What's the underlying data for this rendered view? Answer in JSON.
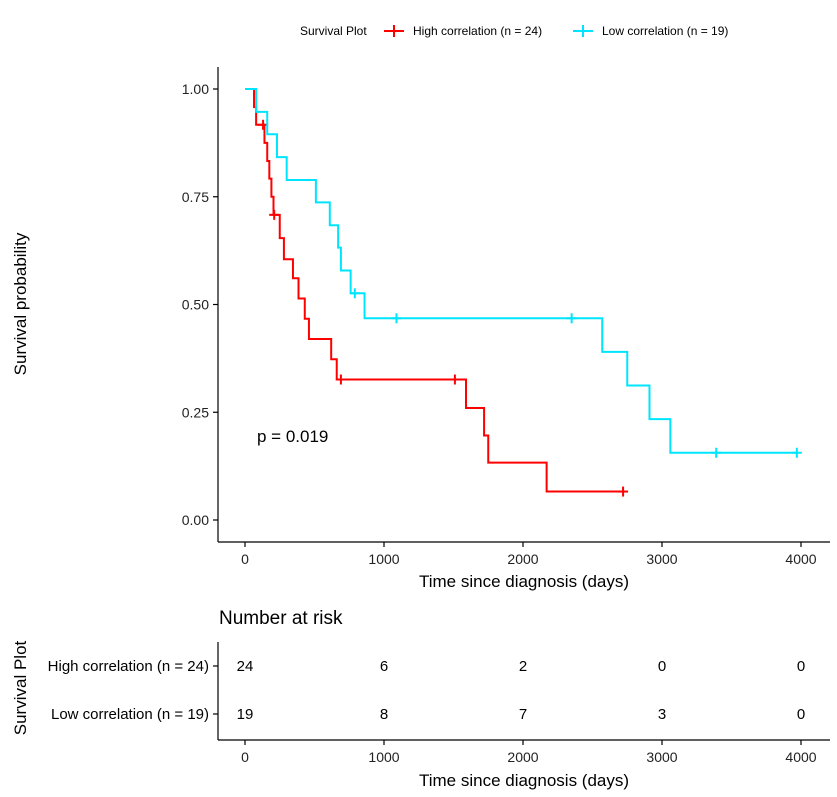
{
  "chart_data": {
    "type": "line",
    "subtype": "kaplan-meier-step",
    "legend": {
      "title": "Survival Plot",
      "placement": "top",
      "entries": [
        "High correlation (n = 24)",
        "Low correlation (n = 19)"
      ]
    },
    "xlabel": "Time since diagnosis (days)",
    "ylabel": "Survival probability",
    "xlim": [
      0,
      4000
    ],
    "ylim": [
      0,
      1
    ],
    "x_ticks": [
      "0",
      "1000",
      "2000",
      "3000",
      "4000"
    ],
    "y_ticks": [
      "0.00",
      "0.25",
      "0.50",
      "0.75",
      "1.00"
    ],
    "annotation": "p = 0.019",
    "series": [
      {
        "name": "High correlation (n = 24)",
        "color": "#ff0000",
        "steps": [
          [
            0,
            1.0
          ],
          [
            65,
            0.958
          ],
          [
            80,
            0.917
          ],
          [
            140,
            0.875
          ],
          [
            160,
            0.833
          ],
          [
            175,
            0.792
          ],
          [
            190,
            0.75
          ],
          [
            205,
            0.708
          ],
          [
            250,
            0.654
          ],
          [
            280,
            0.605
          ],
          [
            345,
            0.561
          ],
          [
            385,
            0.514
          ],
          [
            430,
            0.467
          ],
          [
            460,
            0.42
          ],
          [
            620,
            0.373
          ],
          [
            660,
            0.326
          ],
          [
            1590,
            0.26
          ],
          [
            1720,
            0.196
          ],
          [
            1750,
            0.133
          ],
          [
            2170,
            0.066
          ],
          [
            2720,
            0.066
          ]
        ],
        "censored": [
          [
            130,
            0.917
          ],
          [
            210,
            0.708
          ],
          [
            690,
            0.326
          ],
          [
            1510,
            0.326
          ],
          [
            2720,
            0.066
          ]
        ]
      },
      {
        "name": "Low correlation (n = 19)",
        "color": "#00e5ff",
        "steps": [
          [
            0,
            1.0
          ],
          [
            80,
            0.947
          ],
          [
            160,
            0.895
          ],
          [
            230,
            0.842
          ],
          [
            300,
            0.789
          ],
          [
            510,
            0.737
          ],
          [
            610,
            0.684
          ],
          [
            670,
            0.632
          ],
          [
            690,
            0.579
          ],
          [
            760,
            0.526
          ],
          [
            860,
            0.468
          ],
          [
            2570,
            0.39
          ],
          [
            2750,
            0.312
          ],
          [
            2910,
            0.234
          ],
          [
            3060,
            0.156
          ],
          [
            3980,
            0.156
          ]
        ],
        "censored": [
          [
            790,
            0.526
          ],
          [
            1090,
            0.468
          ],
          [
            2350,
            0.468
          ],
          [
            3390,
            0.156
          ],
          [
            3970,
            0.156
          ]
        ]
      }
    ],
    "risk_table": {
      "title": "Number at risk",
      "ylabel": "Survival Plot",
      "xlabel": "Time since diagnosis (days)",
      "times": [
        0,
        1000,
        2000,
        3000,
        4000
      ],
      "rows": [
        {
          "label": "High correlation (n = 24)",
          "color": "#ff0000",
          "values": [
            "24",
            "6",
            "2",
            "0",
            "0"
          ]
        },
        {
          "label": "Low correlation (n = 19)",
          "color": "#00e5ff",
          "values": [
            "19",
            "8",
            "7",
            "3",
            "0"
          ]
        }
      ]
    }
  }
}
